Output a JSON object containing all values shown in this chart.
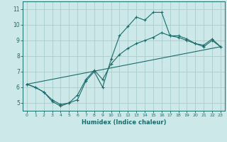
{
  "xlabel": "Humidex (Indice chaleur)",
  "background_color": "#cde8e8",
  "grid_color": "#aacccc",
  "line_color": "#1a6b6b",
  "xlim": [
    -0.5,
    23.5
  ],
  "ylim": [
    4.5,
    11.5
  ],
  "xticks": [
    0,
    1,
    2,
    3,
    4,
    5,
    6,
    7,
    8,
    9,
    10,
    11,
    12,
    13,
    14,
    15,
    16,
    17,
    18,
    19,
    20,
    21,
    22,
    23
  ],
  "yticks": [
    5,
    6,
    7,
    8,
    9,
    10,
    11
  ],
  "line1_x": [
    0,
    1,
    2,
    3,
    4,
    5,
    6,
    7,
    8,
    9,
    10,
    11,
    12,
    13,
    14,
    15,
    16,
    17,
    18,
    19,
    20,
    21,
    22,
    23
  ],
  "line1_y": [
    6.2,
    6.0,
    5.7,
    5.1,
    4.8,
    5.0,
    5.2,
    6.4,
    7.0,
    6.0,
    7.8,
    9.3,
    9.9,
    10.5,
    10.3,
    10.8,
    10.8,
    9.3,
    9.3,
    9.1,
    8.8,
    8.7,
    9.1,
    8.6
  ],
  "line2_x": [
    0,
    1,
    2,
    3,
    4,
    5,
    6,
    7,
    8,
    9,
    10,
    11,
    12,
    13,
    14,
    15,
    16,
    17,
    18,
    19,
    20,
    21,
    22,
    23
  ],
  "line2_y": [
    6.2,
    6.0,
    5.7,
    5.2,
    4.9,
    5.0,
    5.5,
    6.5,
    7.1,
    6.5,
    7.5,
    8.1,
    8.5,
    8.8,
    9.0,
    9.2,
    9.5,
    9.3,
    9.2,
    9.0,
    8.8,
    8.6,
    9.0,
    8.6
  ],
  "line3_x": [
    0,
    23
  ],
  "line3_y": [
    6.2,
    8.6
  ]
}
